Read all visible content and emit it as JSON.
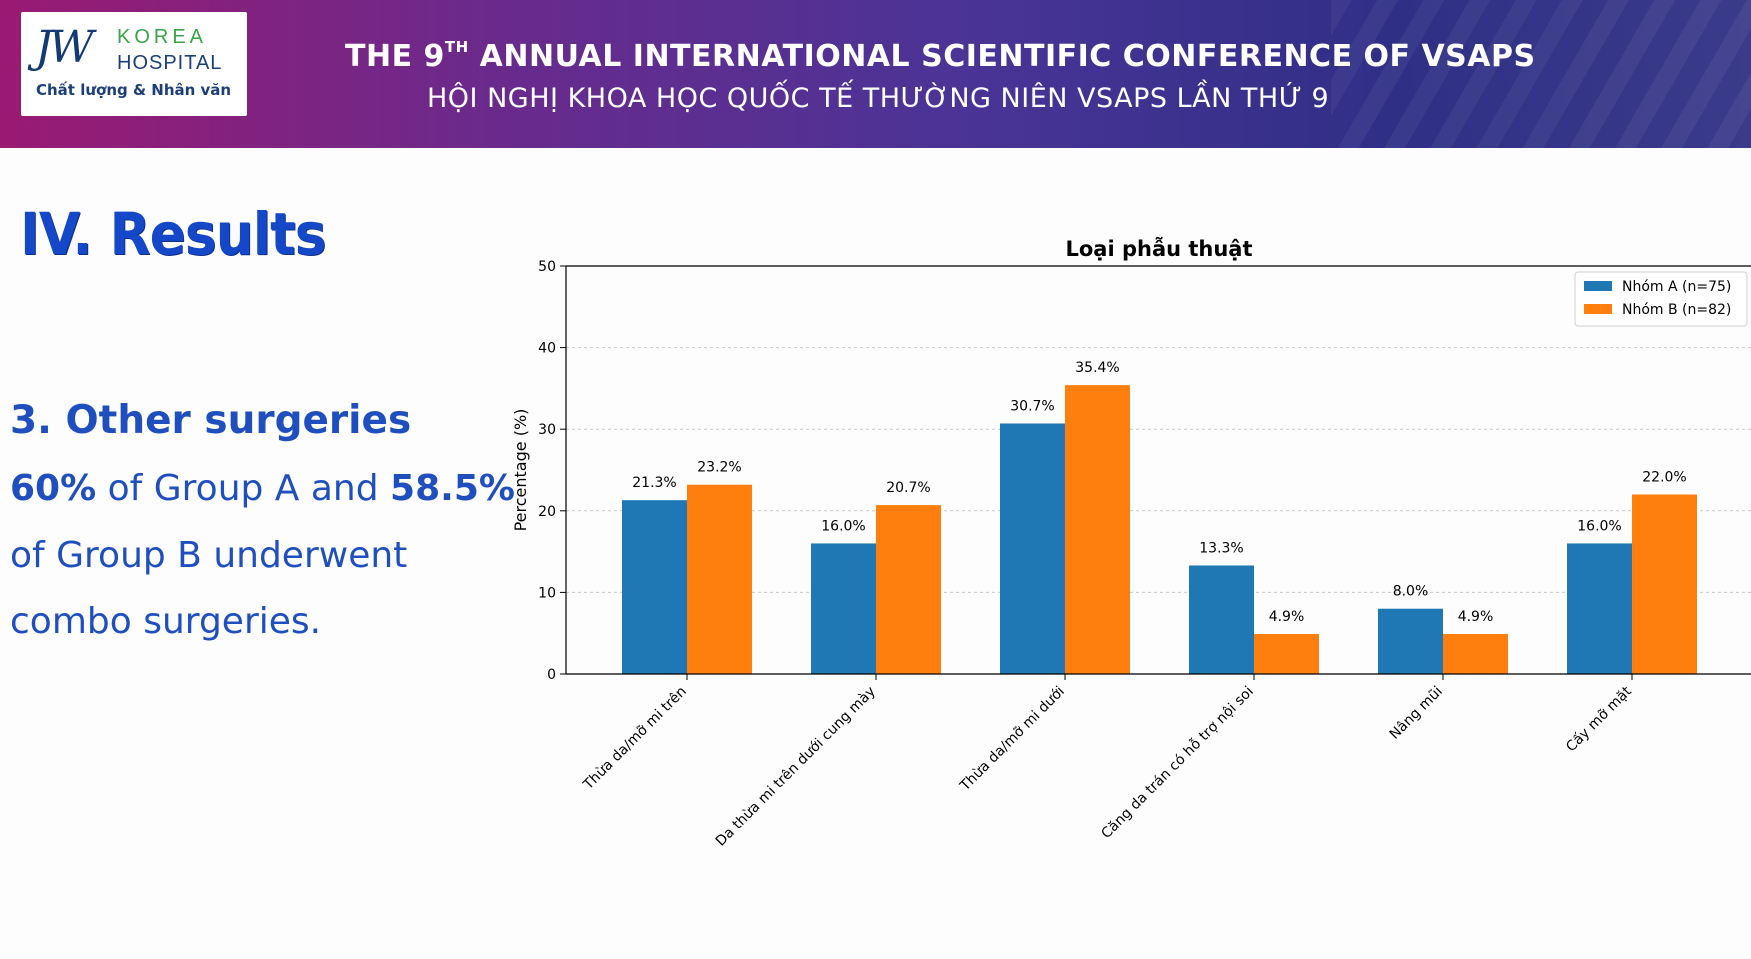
{
  "banner": {
    "logo_mark": "JW",
    "logo_korea": "KOREA",
    "logo_hospital": "HOSPITAL",
    "logo_tagline": "Chất lượng & Nhân văn",
    "title_en_pre": "THE 9",
    "title_en_sup": "TH",
    "title_en_post": " ANNUAL INTERNATIONAL SCIENTIFIC CONFERENCE OF VSAPS",
    "title_vn": "HỘI NGHỊ KHOA HỌC QUỐC TẾ THƯỜNG NIÊN VSAPS LẦN THỨ 9"
  },
  "section": {
    "title": "IV. Results",
    "subheading": "3. Other surgeries",
    "line1_bold1": "60%",
    "line1_mid": " of Group A and ",
    "line1_bold2": "58.5%",
    "line2": "of Group B underwent",
    "line3": "combo surgeries."
  },
  "colors": {
    "group_a": "#1f77b4",
    "group_b": "#ff7f0e"
  },
  "chart_data": {
    "type": "bar",
    "title": "Loại phẫu thuật",
    "xlabel": "",
    "ylabel": "Percentage (%)",
    "ylim": [
      0,
      50
    ],
    "yticks": [
      0,
      10,
      20,
      30,
      40,
      50
    ],
    "grid": true,
    "legend_position": "top-right",
    "categories": [
      "Thừa da/mỡ mi trên",
      "Da thừa mi trên dưới cung mày",
      "Thừa da/mỡ mi dưới",
      "Căng da trán có hỗ trợ nội soi",
      "Nâng mũi",
      "Cấy mỡ mặt"
    ],
    "series": [
      {
        "name": "Nhóm A (n=75)",
        "color": "#1f77b4",
        "values": [
          21.3,
          16.0,
          30.7,
          13.3,
          8.0,
          16.0
        ],
        "labels": [
          "21.3%",
          "16.0%",
          "30.7%",
          "13.3%",
          "8.0%",
          "16.0%"
        ]
      },
      {
        "name": "Nhóm B (n=82)",
        "color": "#ff7f0e",
        "values": [
          23.2,
          20.7,
          35.4,
          4.9,
          4.9,
          22.0
        ],
        "labels": [
          "23.2%",
          "20.7%",
          "35.4%",
          "4.9%",
          "4.9%",
          "22.0%"
        ]
      }
    ]
  }
}
